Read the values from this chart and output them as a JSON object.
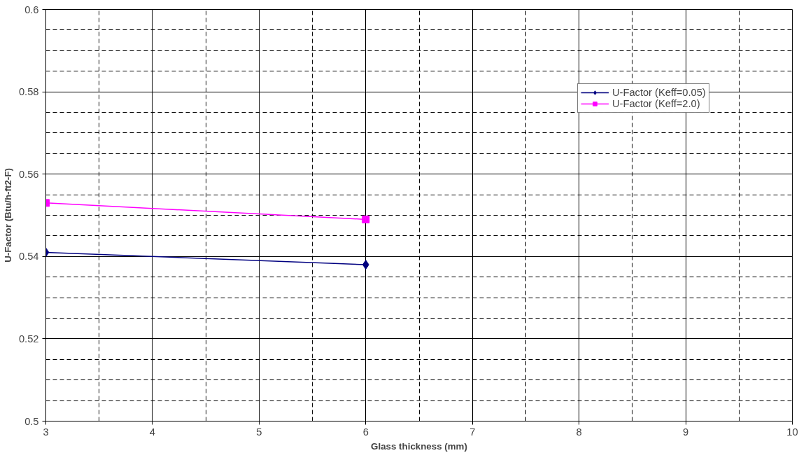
{
  "chart_data": {
    "type": "line",
    "xlabel": "Glass thickness (mm)",
    "ylabel": "U-Factor (Btu/h-ft2-F)",
    "x": [
      3,
      6
    ],
    "series": [
      {
        "name": "U-Factor (Keff=0.05)",
        "color": "#000080",
        "marker": "diamond",
        "values": [
          0.541,
          0.538
        ]
      },
      {
        "name": "U-Factor (Keff=2.0)",
        "color": "#ff00ff",
        "marker": "square",
        "values": [
          0.553,
          0.549
        ]
      }
    ],
    "xlim": [
      3,
      10
    ],
    "xticks": [
      3,
      4,
      5,
      6,
      7,
      8,
      9,
      10
    ],
    "ylim": [
      0.5,
      0.6
    ],
    "yticks": [
      0.5,
      0.52,
      0.54,
      0.56,
      0.58,
      0.6
    ],
    "grid": true,
    "legend": "top right",
    "line_style": "solid"
  }
}
